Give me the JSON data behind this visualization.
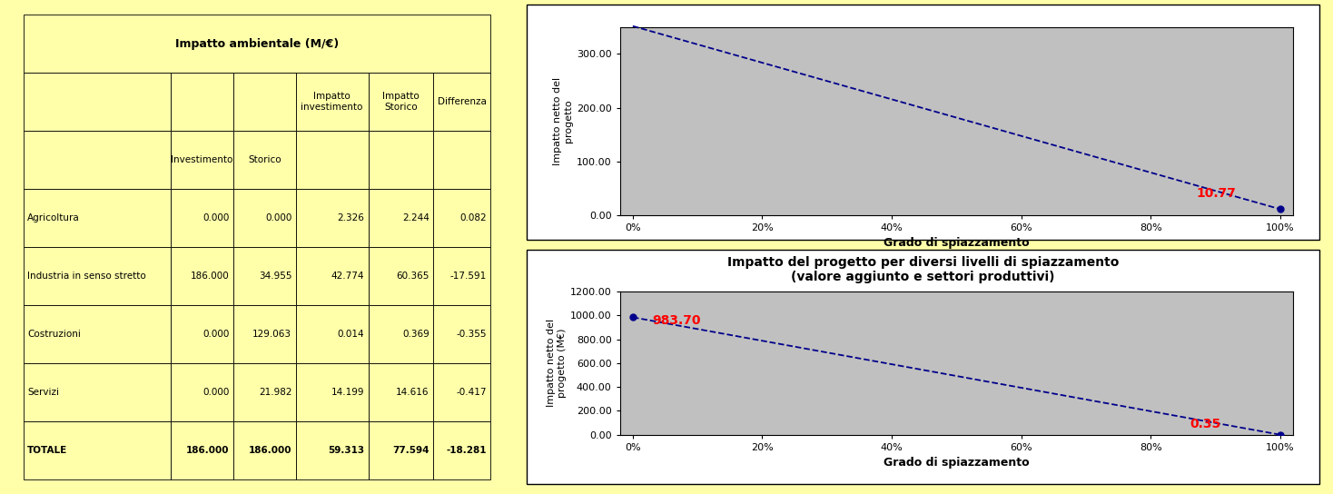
{
  "bg_color": "#FFFFAA",
  "table": {
    "title": "Impatto ambientale (M/€)",
    "rows": [
      [
        "Agricoltura",
        "0.000",
        "0.000",
        "2.326",
        "2.244",
        "0.082"
      ],
      [
        "Industria in senso stretto",
        "186.000",
        "34.955",
        "42.774",
        "60.365",
        "-17.591"
      ],
      [
        "Costruzioni",
        "0.000",
        "129.063",
        "0.014",
        "0.369",
        "-0.355"
      ],
      [
        "Servizi",
        "0.000",
        "21.982",
        "14.199",
        "14.616",
        "-0.417"
      ],
      [
        "TOTALE",
        "186.000",
        "186.000",
        "59.313",
        "77.594",
        "-18.281"
      ]
    ]
  },
  "chart1": {
    "ylabel": "Impatto netto del\nprogetto",
    "xlabel": "Grado di spiazzamento",
    "x": [
      0.0,
      1.0
    ],
    "y": [
      352.0,
      10.77
    ],
    "ylim": [
      0,
      350
    ],
    "yticks": [
      0.0,
      100.0,
      200.0,
      300.0
    ],
    "xticks": [
      0.0,
      0.2,
      0.4,
      0.6,
      0.8,
      1.0
    ],
    "xticklabels": [
      "0%",
      "20%",
      "40%",
      "60%",
      "80%",
      "100%"
    ],
    "line_color": "#00008B",
    "marker_end": true,
    "annotation_end": "10.77",
    "annotation_color": "red",
    "plot_bg": "#C0C0C0",
    "panel_bg": "white"
  },
  "chart2": {
    "title_line1": "Impatto del progetto per diversi livelli di spiazzamento",
    "title_line2": "(valore aggiunto e settori produttivi)",
    "ylabel": "Impatto netto del\nprogetto (M€)",
    "xlabel": "Grado di spiazzamento",
    "x": [
      0.0,
      1.0
    ],
    "y": [
      983.7,
      0.35
    ],
    "ylim": [
      0,
      1200
    ],
    "yticks": [
      0.0,
      200.0,
      400.0,
      600.0,
      800.0,
      1000.0,
      1200.0
    ],
    "xticks": [
      0.0,
      0.2,
      0.4,
      0.6,
      0.8,
      1.0
    ],
    "xticklabels": [
      "0%",
      "20%",
      "40%",
      "60%",
      "80%",
      "100%"
    ],
    "line_color": "#00008B",
    "annotation_start": "983.70",
    "annotation_end": "0.35",
    "annotation_color": "red",
    "plot_bg": "#C0C0C0",
    "panel_bg": "white"
  }
}
